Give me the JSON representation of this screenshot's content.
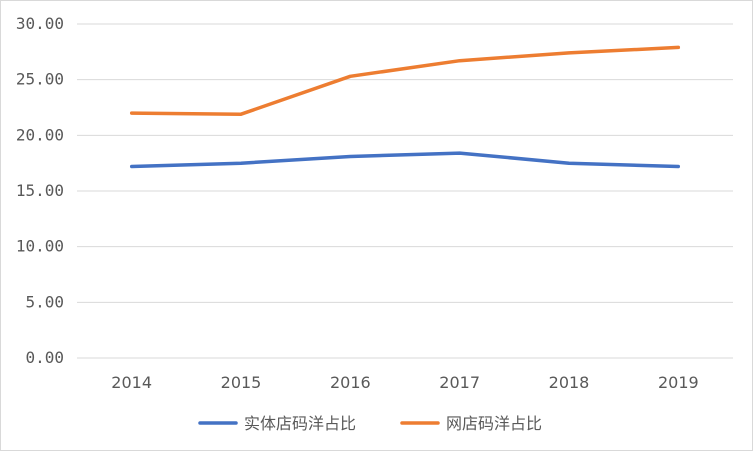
{
  "chart_data": {
    "type": "line",
    "title": "",
    "xlabel": "",
    "ylabel": "",
    "categories": [
      "2014",
      "2015",
      "2016",
      "2017",
      "2018",
      "2019"
    ],
    "y_ticks": [
      "0.00",
      "5.00",
      "10.00",
      "15.00",
      "20.00",
      "25.00",
      "30.00"
    ],
    "ylim": [
      0,
      30
    ],
    "grid": true,
    "legend_position": "bottom",
    "series": [
      {
        "name": "实体店码洋占比",
        "color": "#4472c4",
        "values": [
          17.2,
          17.5,
          18.1,
          18.4,
          17.5,
          17.2
        ]
      },
      {
        "name": "网店码洋占比",
        "color": "#ed7d31",
        "values": [
          22.0,
          21.9,
          25.3,
          26.7,
          27.4,
          27.9
        ]
      }
    ]
  }
}
